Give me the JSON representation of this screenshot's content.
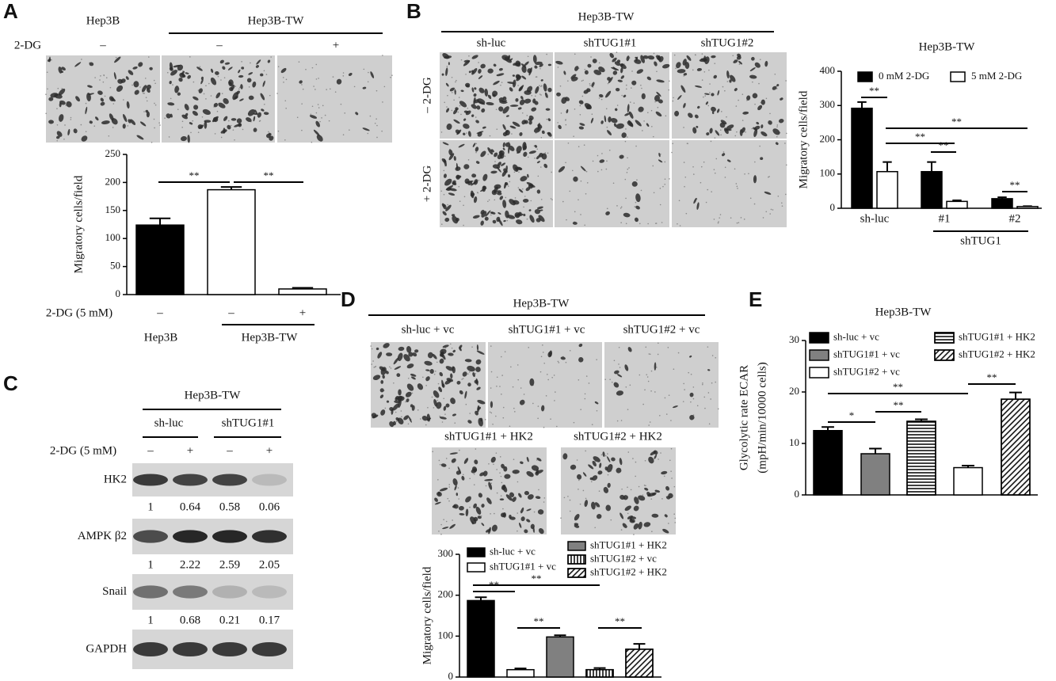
{
  "panel_a": {
    "label": "A",
    "headers": [
      "Hep3B",
      "Hep3B-TW"
    ],
    "treatment": "2-DG",
    "signs": [
      "–",
      "–",
      "+"
    ]
  },
  "panel_b": {
    "label": "B",
    "header": "Hep3B-TW",
    "columns": [
      "sh-luc",
      "shTUG1#1",
      "shTUG1#2"
    ],
    "rows": [
      "– 2-DG",
      "+ 2-DG"
    ]
  },
  "panel_c": {
    "label": "C",
    "header": "Hep3B-TW",
    "groups": [
      "sh-luc",
      "shTUG1#1"
    ],
    "treatment": "2-DG (5 mM)",
    "signs": [
      "–",
      "+",
      "–",
      "+"
    ],
    "blots": [
      {
        "name": "HK2",
        "quant": [
          1,
          0.64,
          0.58,
          0.06
        ]
      },
      {
        "name": "AMPK β2",
        "quant": [
          1,
          2.22,
          2.59,
          2.05
        ]
      },
      {
        "name": "Snail",
        "quant": [
          1,
          0.68,
          0.21,
          0.17
        ]
      },
      {
        "name": "GAPDH"
      }
    ]
  },
  "panel_d": {
    "label": "D",
    "header": "Hep3B-TW",
    "images": [
      "sh-luc + vc",
      "shTUG1#1 + vc",
      "shTUG1#2 + vc",
      "shTUG1#1 + HK2",
      "shTUG1#2 + HK2"
    ]
  },
  "panel_e": {
    "label": "E"
  },
  "chart_data": [
    {
      "type": "bar",
      "ylabel": "Migratory cells/field",
      "categories": [
        "–",
        "–",
        "+"
      ],
      "x_row_label": "2-DG (5 mM)",
      "groups": [
        "Hep3B",
        "Hep3B-TW"
      ],
      "values": [
        124,
        187,
        10
      ],
      "errors": [
        12,
        5,
        2
      ],
      "colors": [
        "#000000",
        "#ffffff",
        "#ffffff"
      ],
      "ylim": [
        0,
        250
      ],
      "yticks": [
        0,
        50,
        100,
        150,
        200,
        250
      ],
      "annotations": [
        "**",
        "**"
      ]
    },
    {
      "type": "grouped_bar",
      "title": "Hep3B-TW",
      "ylabel": "Migratory cells/field",
      "categories": [
        "sh-luc",
        "#1",
        "#2"
      ],
      "group_label": "shTUG1",
      "series": [
        {
          "name": "0 mM 2-DG",
          "color": "#000000",
          "values": [
            292,
            107,
            28
          ],
          "errors": [
            18,
            28,
            4
          ]
        },
        {
          "name": "5 mM 2-DG",
          "color": "#ffffff",
          "values": [
            107,
            20,
            5
          ],
          "errors": [
            28,
            3,
            1
          ]
        }
      ],
      "ylim": [
        0,
        400
      ],
      "yticks": [
        0,
        100,
        200,
        300,
        400
      ],
      "annotations": [
        "**",
        "**",
        "**",
        "**",
        "**"
      ]
    },
    {
      "type": "bar",
      "ylabel": "Migratory cells/field",
      "legend": true,
      "categories": [
        "sh-luc + vc",
        "shTUG1#1 + vc",
        "shTUG1#1 + HK2",
        "shTUG1#2 + vc",
        "shTUG1#2 + HK2"
      ],
      "values": [
        187,
        18,
        98,
        18,
        68
      ],
      "errors": [
        8,
        3,
        4,
        4,
        13
      ],
      "colors": [
        "#000000",
        "#ffffff",
        "#808080",
        "#ffffff",
        "#ffffff"
      ],
      "patterns": [
        "solid",
        "solid",
        "solid",
        "vertical",
        "diagonal"
      ],
      "ylim": [
        0,
        300
      ],
      "yticks": [
        0,
        100,
        200,
        300
      ],
      "annotations": [
        "**",
        "**",
        "**",
        "**"
      ]
    },
    {
      "type": "bar",
      "title": "Hep3B-TW",
      "ylabel": [
        "Glycolytic rate ECAR",
        "(mpH/min/10000 cells)"
      ],
      "legend": true,
      "categories": [
        "sh-luc + vc",
        "shTUG1#1 + vc",
        "shTUG1#1 + HK2",
        "shTUG1#2 + vc",
        "shTUG1#2 + HK2"
      ],
      "values": [
        12.5,
        8,
        14.3,
        5.3,
        18.6
      ],
      "errors": [
        0.7,
        1,
        0.4,
        0.4,
        1.3
      ],
      "colors": [
        "#000000",
        "#808080",
        "#ffffff",
        "#ffffff",
        "#ffffff"
      ],
      "patterns": [
        "solid",
        "solid",
        "horizontal",
        "solid",
        "diagonal"
      ],
      "ylim": [
        0,
        30
      ],
      "yticks": [
        0,
        10,
        20,
        30
      ],
      "annotations": [
        "*",
        "**",
        "**",
        "**"
      ]
    }
  ]
}
